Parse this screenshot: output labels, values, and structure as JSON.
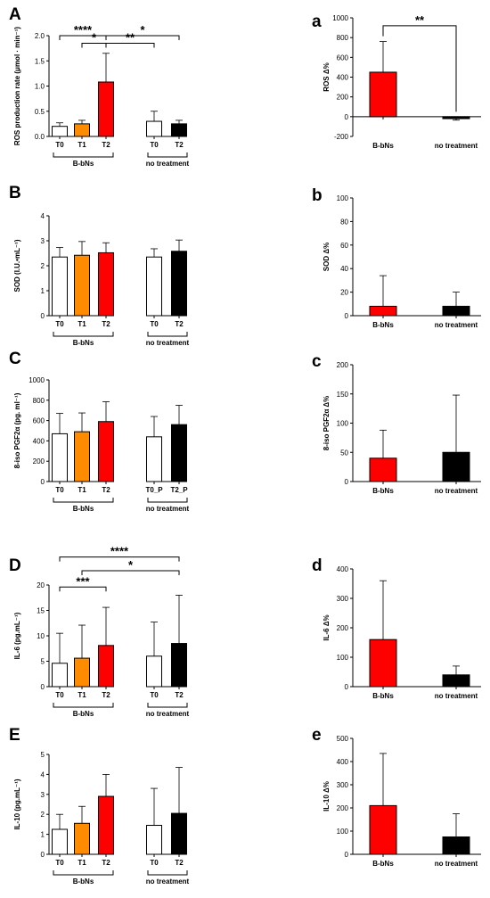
{
  "colors": {
    "T0": "#ffffff",
    "T1": "#ff8c00",
    "T2": "#ff0000",
    "no_treatment_T2": "#000000",
    "axis": "#000000"
  },
  "chart_data": [
    {
      "id": "A",
      "type": "bar",
      "panel_label": "A",
      "ylabel": "ROS production rate (μmol · min⁻¹)",
      "ylim": [
        0,
        2.0
      ],
      "yticks": [
        "0.0",
        "0.5",
        "1.0",
        "1.5",
        "2.0"
      ],
      "groups": [
        {
          "name": "B-bNs",
          "bars": [
            {
              "label": "T0",
              "value": 0.2,
              "error": 0.07,
              "color": "#ffffff"
            },
            {
              "label": "T1",
              "value": 0.25,
              "error": 0.07,
              "color": "#ff8c00"
            },
            {
              "label": "T2",
              "value": 1.08,
              "error": 0.57,
              "color": "#ff0000"
            }
          ]
        },
        {
          "name": "no treatment",
          "bars": [
            {
              "label": "T0",
              "value": 0.3,
              "error": 0.2,
              "color": "#ffffff"
            },
            {
              "label": "T2",
              "value": 0.25,
              "error": 0.07,
              "color": "#000000"
            }
          ]
        }
      ],
      "significance": [
        {
          "from": 0,
          "to": 2,
          "label": "****",
          "at": 2.0
        },
        {
          "from": 2,
          "to": 4,
          "label": "*",
          "at": 2.0
        },
        {
          "from": 1,
          "to": 2,
          "label": "*",
          "at": 1.85
        },
        {
          "from": 2,
          "to": 3,
          "label": "**",
          "at": 1.85
        }
      ]
    },
    {
      "id": "a",
      "type": "bar",
      "panel_label": "a",
      "ylabel": "ROS Δ%",
      "ylim": [
        -200,
        1000
      ],
      "yticks": [
        "-200",
        "0",
        "200",
        "400",
        "600",
        "800",
        "1000"
      ],
      "categories": [
        "B-bNs",
        "no treatment"
      ],
      "values": [
        450,
        -20
      ],
      "errors": [
        310,
        15
      ],
      "bar_colors": [
        "#ff0000",
        "#000000"
      ],
      "significance": [
        {
          "from": 0,
          "to": 1,
          "label": "**",
          "at": 920
        }
      ]
    },
    {
      "id": "B",
      "type": "bar",
      "panel_label": "B",
      "ylabel": "SOD (I.U.•mL⁻¹)",
      "ylim": [
        0,
        4
      ],
      "yticks": [
        "0",
        "1",
        "2",
        "3",
        "4"
      ],
      "groups": [
        {
          "name": "B-bNs",
          "bars": [
            {
              "label": "T0",
              "value": 2.35,
              "error": 0.38,
              "color": "#ffffff"
            },
            {
              "label": "T1",
              "value": 2.42,
              "error": 0.55,
              "color": "#ff8c00"
            },
            {
              "label": "T2",
              "value": 2.52,
              "error": 0.4,
              "color": "#ff0000"
            }
          ]
        },
        {
          "name": "no treatment",
          "bars": [
            {
              "label": "T0",
              "value": 2.35,
              "error": 0.33,
              "color": "#ffffff"
            },
            {
              "label": "T2",
              "value": 2.58,
              "error": 0.45,
              "color": "#000000"
            }
          ]
        }
      ],
      "significance": []
    },
    {
      "id": "b",
      "type": "bar",
      "panel_label": "b",
      "ylabel": "SOD Δ%",
      "ylim": [
        0,
        100
      ],
      "yticks": [
        "0",
        "20",
        "40",
        "60",
        "80",
        "100"
      ],
      "categories": [
        "B-bNs",
        "no treatment"
      ],
      "values": [
        8,
        8
      ],
      "errors": [
        26,
        12
      ],
      "bar_colors": [
        "#ff0000",
        "#000000"
      ],
      "significance": []
    },
    {
      "id": "C",
      "type": "bar",
      "panel_label": "C",
      "ylabel": "8-iso PGF2α (pg. ml⁻¹)",
      "ylim": [
        0,
        1000
      ],
      "yticks": [
        "0",
        "200",
        "400",
        "600",
        "800",
        "1000"
      ],
      "groups": [
        {
          "name": "B-bNs",
          "bars": [
            {
              "label": "T0",
              "value": 470,
              "error": 200,
              "color": "#ffffff"
            },
            {
              "label": "T1",
              "value": 490,
              "error": 185,
              "color": "#ff8c00"
            },
            {
              "label": "T2",
              "value": 590,
              "error": 195,
              "color": "#ff0000"
            }
          ]
        },
        {
          "name": "no treatment",
          "bars": [
            {
              "label": "T0_P",
              "value": 440,
              "error": 200,
              "color": "#ffffff"
            },
            {
              "label": "T2_P",
              "value": 560,
              "error": 190,
              "color": "#000000"
            }
          ]
        }
      ],
      "significance": []
    },
    {
      "id": "c",
      "type": "bar",
      "panel_label": "c",
      "ylabel": "8-iso PGF2α Δ%",
      "ylim": [
        0,
        200
      ],
      "yticks": [
        "0",
        "50",
        "100",
        "150",
        "200"
      ],
      "categories": [
        "B-bNs",
        "no treatment"
      ],
      "values": [
        40,
        50
      ],
      "errors": [
        48,
        98
      ],
      "bar_colors": [
        "#ff0000",
        "#000000"
      ],
      "significance": []
    },
    {
      "id": "D",
      "type": "bar",
      "panel_label": "D",
      "ylabel": "IL-6 (pg.mL⁻¹)",
      "ylim": [
        0,
        20
      ],
      "yticks": [
        "0",
        "5",
        "10",
        "15",
        "20"
      ],
      "groups": [
        {
          "name": "B-bNs",
          "bars": [
            {
              "label": "T0",
              "value": 4.6,
              "error": 5.9,
              "color": "#ffffff"
            },
            {
              "label": "T1",
              "value": 5.6,
              "error": 6.5,
              "color": "#ff8c00"
            },
            {
              "label": "T2",
              "value": 8.1,
              "error": 7.5,
              "color": "#ff0000"
            }
          ]
        },
        {
          "name": "no treatment",
          "bars": [
            {
              "label": "T0",
              "value": 6.0,
              "error": 6.7,
              "color": "#ffffff"
            },
            {
              "label": "T2",
              "value": 8.5,
              "error": 9.5,
              "color": "#000000"
            }
          ]
        }
      ],
      "significance": [
        {
          "from": 0,
          "to": 4,
          "label": "****",
          "at": 25.5
        },
        {
          "from": 1,
          "to": 4,
          "label": "*",
          "at": 22.8
        },
        {
          "from": 0,
          "to": 2,
          "label": "***",
          "at": 19.6
        }
      ]
    },
    {
      "id": "d",
      "type": "bar",
      "panel_label": "d",
      "ylabel": "IL-6 Δ%",
      "ylim": [
        0,
        400
      ],
      "yticks": [
        "0",
        "100",
        "200",
        "300",
        "400"
      ],
      "categories": [
        "B-bNs",
        "no treatment"
      ],
      "values": [
        160,
        40
      ],
      "errors": [
        200,
        30
      ],
      "bar_colors": [
        "#ff0000",
        "#000000"
      ],
      "significance": []
    },
    {
      "id": "E",
      "type": "bar",
      "panel_label": "E",
      "ylabel": "IL-10 (pg.mL⁻¹)",
      "ylim": [
        0,
        5
      ],
      "yticks": [
        "0",
        "1",
        "2",
        "3",
        "4",
        "5"
      ],
      "groups": [
        {
          "name": "B-bNs",
          "bars": [
            {
              "label": "T0",
              "value": 1.25,
              "error": 0.75,
              "color": "#ffffff"
            },
            {
              "label": "T1",
              "value": 1.55,
              "error": 0.85,
              "color": "#ff8c00"
            },
            {
              "label": "T2",
              "value": 2.9,
              "error": 1.1,
              "color": "#ff0000"
            }
          ]
        },
        {
          "name": "no treatment",
          "bars": [
            {
              "label": "T0",
              "value": 1.45,
              "error": 1.85,
              "color": "#ffffff"
            },
            {
              "label": "T2",
              "value": 2.05,
              "error": 2.3,
              "color": "#000000"
            }
          ]
        }
      ],
      "significance": []
    },
    {
      "id": "e",
      "type": "bar",
      "panel_label": "e",
      "ylabel": "IL-10 Δ%",
      "ylim": [
        0,
        500
      ],
      "yticks": [
        "0",
        "100",
        "200",
        "300",
        "400",
        "500"
      ],
      "categories": [
        "B-bNs",
        "no treatment"
      ],
      "values": [
        210,
        75
      ],
      "errors": [
        225,
        100
      ],
      "bar_colors": [
        "#ff0000",
        "#000000"
      ],
      "significance": []
    }
  ]
}
